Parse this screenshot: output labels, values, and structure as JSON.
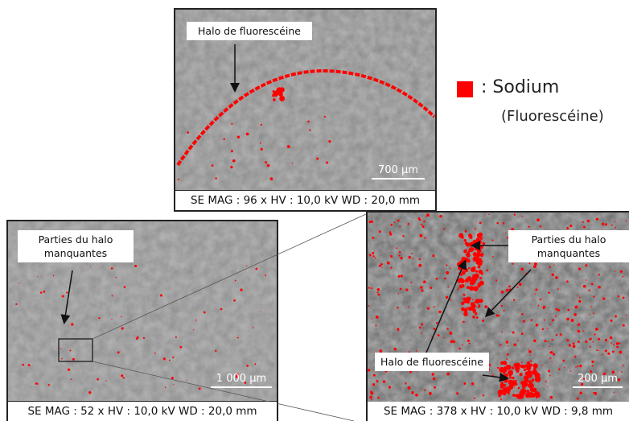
{
  "legend": {
    "label": ": Sodium",
    "sublabel": "(Fluorescéine)"
  },
  "panels": [
    {
      "caption": "SE MAG : 96 x HV : 10,0 kV WD : 20,0 mm",
      "scale_bar": "700 µm",
      "annotations": [
        "Halo de fluorescéine"
      ]
    },
    {
      "caption": "SE MAG : 52 x HV : 10,0 kV WD : 20,0 mm",
      "scale_bar": "1 000 µm",
      "annotations": [
        "Parties du halo manquantes"
      ]
    },
    {
      "caption": "SE MAG : 378 x HV : 10,0 kV WD : 9,8 mm",
      "scale_bar": "200 µm",
      "annotations": [
        "Parties du halo manquantes",
        "Halo de fluorescéine"
      ]
    }
  ]
}
